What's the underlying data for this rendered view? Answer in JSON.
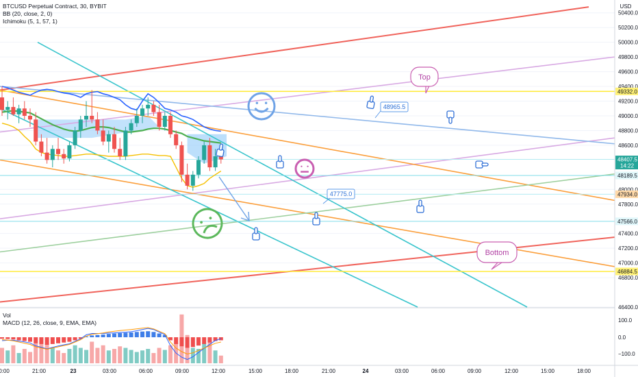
{
  "header": {
    "symbol_line": "BTCUSD Perpetual Contract, 30, BYBIT",
    "bb_line": "BB (20, close, 2, 0)",
    "ichimoku_line": "Ichimoku (5, 1, 57, 1)"
  },
  "lower_pane": {
    "vol_label": "Vol",
    "macd_label": "MACD (12, 26, close, 9, EMA, EMA)",
    "y_ticks": [
      "100.0",
      "0.0",
      "−100.0"
    ]
  },
  "price_axis": {
    "currency": "USD",
    "ticks": [
      50400,
      50200,
      50000,
      49800,
      49600,
      49400,
      49200,
      49000,
      48800,
      48600,
      48000,
      47800,
      47400,
      47200,
      47000,
      46800,
      46400
    ]
  },
  "price_badges": [
    {
      "text": "49332.0",
      "price": 49332,
      "bg": "#fff176",
      "fg": "#131722"
    },
    {
      "text": "48407.5",
      "sub": "14:22",
      "price": 48407.5,
      "bg": "#26a69a",
      "fg": "#ffffff"
    },
    {
      "text": "48189.5",
      "price": 48189.5,
      "bg": "#e0f7fa",
      "fg": "#131722"
    },
    {
      "text": "47934.0",
      "price": 47934,
      "bg": "#ffd9a8",
      "fg": "#131722"
    },
    {
      "text": "47566.0",
      "price": 47566,
      "bg": "#e0f7fa",
      "fg": "#131722"
    },
    {
      "text": "46884.5",
      "price": 46884.5,
      "bg": "#fff176",
      "fg": "#131722"
    }
  ],
  "time_axis": {
    "labels": [
      "0:00",
      "21:00",
      "23",
      "03:00",
      "06:00",
      "09:00",
      "12:00",
      "15:00",
      "18:00",
      "21:00",
      "24",
      "03:00",
      "06:00",
      "09:00",
      "12:00",
      "15:00",
      "18:00"
    ]
  },
  "annotations": {
    "top": "Top",
    "bottom": "Bottom",
    "note_1": "48965.5",
    "note_2": "47775.0"
  },
  "colors": {
    "up": "#26a69a",
    "down": "#ef5350",
    "vol_up": "#80cbc4",
    "vol_down": "#f7a8a8",
    "bb_middle": "#4caf50",
    "bb_band": "#2962ff",
    "ichimoku": "#f5c000",
    "cloud": "#90caf9"
  },
  "chart_data": {
    "type": "candlestick",
    "title": "BTCUSD Perpetual Contract, 30, BYBIT",
    "ylim": [
      46400,
      50500
    ],
    "candles": [
      {
        "o": 49250,
        "h": 49400,
        "l": 49000,
        "c": 49080
      },
      {
        "o": 49080,
        "h": 49200,
        "l": 48950,
        "c": 49120
      },
      {
        "o": 49120,
        "h": 49250,
        "l": 49000,
        "c": 49020
      },
      {
        "o": 49020,
        "h": 49150,
        "l": 48900,
        "c": 49100
      },
      {
        "o": 49100,
        "h": 49200,
        "l": 48950,
        "c": 49000
      },
      {
        "o": 49000,
        "h": 49100,
        "l": 48850,
        "c": 48950
      },
      {
        "o": 48950,
        "h": 49050,
        "l": 48600,
        "c": 48650
      },
      {
        "o": 48650,
        "h": 48750,
        "l": 48450,
        "c": 48500
      },
      {
        "o": 48500,
        "h": 48700,
        "l": 48350,
        "c": 48400
      },
      {
        "o": 48400,
        "h": 48600,
        "l": 48300,
        "c": 48550
      },
      {
        "o": 48550,
        "h": 48700,
        "l": 48400,
        "c": 48480
      },
      {
        "o": 48480,
        "h": 48550,
        "l": 48350,
        "c": 48420
      },
      {
        "o": 48420,
        "h": 48650,
        "l": 48380,
        "c": 48600
      },
      {
        "o": 48600,
        "h": 48850,
        "l": 48550,
        "c": 48800
      },
      {
        "o": 48800,
        "h": 49000,
        "l": 48700,
        "c": 48950
      },
      {
        "o": 48950,
        "h": 49200,
        "l": 48850,
        "c": 49000
      },
      {
        "o": 49000,
        "h": 49350,
        "l": 48900,
        "c": 48950
      },
      {
        "o": 48950,
        "h": 49050,
        "l": 48750,
        "c": 48800
      },
      {
        "o": 48800,
        "h": 48950,
        "l": 48600,
        "c": 48650
      },
      {
        "o": 48650,
        "h": 48800,
        "l": 48500,
        "c": 48750
      },
      {
        "o": 48750,
        "h": 48850,
        "l": 48500,
        "c": 48550
      },
      {
        "o": 48550,
        "h": 48700,
        "l": 48400,
        "c": 48450
      },
      {
        "o": 48450,
        "h": 48850,
        "l": 48400,
        "c": 48800
      },
      {
        "o": 48800,
        "h": 48950,
        "l": 48750,
        "c": 48900
      },
      {
        "o": 48900,
        "h": 49100,
        "l": 48850,
        "c": 49000
      },
      {
        "o": 49000,
        "h": 49150,
        "l": 48900,
        "c": 49100
      },
      {
        "o": 49100,
        "h": 49250,
        "l": 49000,
        "c": 49150
      },
      {
        "o": 49150,
        "h": 49200,
        "l": 49000,
        "c": 49050
      },
      {
        "o": 49050,
        "h": 49150,
        "l": 48800,
        "c": 48850
      },
      {
        "o": 48850,
        "h": 49050,
        "l": 48800,
        "c": 49000
      },
      {
        "o": 49000,
        "h": 49050,
        "l": 48700,
        "c": 48750
      },
      {
        "o": 48750,
        "h": 48800,
        "l": 48550,
        "c": 48600
      },
      {
        "o": 48600,
        "h": 48650,
        "l": 48100,
        "c": 48200
      },
      {
        "o": 48200,
        "h": 48350,
        "l": 48000,
        "c": 48050
      },
      {
        "o": 48050,
        "h": 48250,
        "l": 47980,
        "c": 48200
      },
      {
        "o": 48200,
        "h": 48450,
        "l": 48150,
        "c": 48400
      },
      {
        "o": 48400,
        "h": 48650,
        "l": 48350,
        "c": 48600
      },
      {
        "o": 48600,
        "h": 48700,
        "l": 48250,
        "c": 48300
      },
      {
        "o": 48300,
        "h": 48550,
        "l": 48250,
        "c": 48450
      },
      {
        "o": 48450,
        "h": 48500,
        "l": 48350,
        "c": 48407.5
      }
    ],
    "volume": [
      30,
      25,
      35,
      20,
      28,
      22,
      40,
      45,
      38,
      30,
      25,
      20,
      28,
      35,
      30,
      26,
      42,
      30,
      35,
      25,
      28,
      33,
      30,
      26,
      22,
      25,
      28,
      20,
      30,
      26,
      35,
      40,
      95,
      55,
      30,
      28,
      40,
      45,
      25,
      15
    ],
    "macd_hist": [
      -10,
      -12,
      -15,
      -20,
      -25,
      -30,
      -40,
      -45,
      -50,
      -45,
      -40,
      -35,
      -30,
      -20,
      -10,
      5,
      12,
      15,
      18,
      22,
      25,
      28,
      30,
      32,
      35,
      38,
      40,
      35,
      25,
      15,
      -20,
      -45,
      -60,
      -70,
      -65,
      -55,
      -45,
      -35,
      -25,
      -20
    ]
  }
}
